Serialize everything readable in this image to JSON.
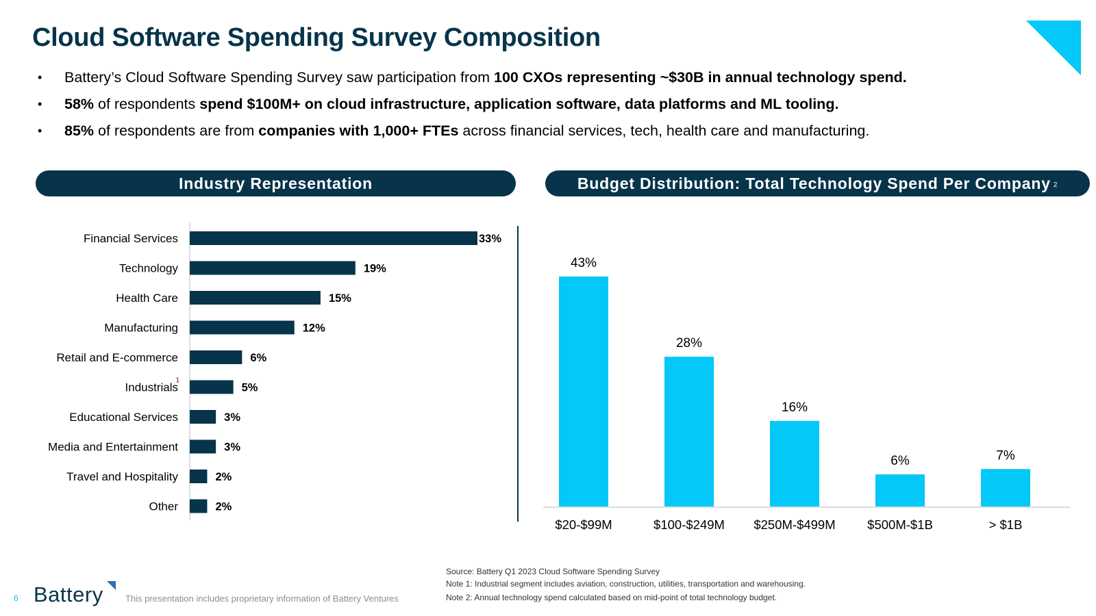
{
  "header": {
    "title": "Cloud Software Spending Survey Composition"
  },
  "bullets": [
    {
      "segments": [
        {
          "text": "Battery’s Cloud Software Spending Survey saw participation from ",
          "bold": false
        },
        {
          "text": "100 CXOs representing ~$30B in annual technology spend.",
          "bold": true
        }
      ]
    },
    {
      "segments": [
        {
          "text": "58%",
          "bold": true
        },
        {
          "text": " of respondents ",
          "bold": false
        },
        {
          "text": "spend $100M+ on cloud infrastructure, application software, data platforms and ML tooling.",
          "bold": true
        }
      ]
    },
    {
      "segments": [
        {
          "text": "85%",
          "bold": true
        },
        {
          "text": " of respondents are from ",
          "bold": false
        },
        {
          "text": "companies with 1,000+ FTEs",
          "bold": true
        },
        {
          "text": " across financial services, tech, health care and manufacturing.",
          "bold": false
        }
      ]
    }
  ],
  "bullet_glyph": "•",
  "panels": {
    "left_title": "Industry Representation",
    "right_title": "Budget Distribution: Total Technology Spend Per Company",
    "right_title_footnote": "2"
  },
  "colors": {
    "navy": "#07344A",
    "cyan": "#03C8F8"
  },
  "chart_data": [
    {
      "type": "bar",
      "orientation": "horizontal",
      "title": "Industry Representation",
      "categories": [
        "Financial Services",
        "Technology",
        "Health Care",
        "Manufacturing",
        "Retail and E-commerce",
        "Industrials",
        "Educational Services",
        "Media and Entertainment",
        "Travel and Hospitality",
        "Other"
      ],
      "category_footnotes": {
        "Industrials": "1"
      },
      "values": [
        33,
        19,
        15,
        12,
        6,
        5,
        3,
        3,
        2,
        2
      ],
      "labels": [
        "33%",
        "19%",
        "15%",
        "12%",
        "6%",
        "5%",
        "3%",
        "3%",
        "2%",
        "2%"
      ],
      "unit": "%",
      "xlim": [
        0,
        33
      ],
      "grid": false,
      "legend": "none",
      "color": "#07344A"
    },
    {
      "type": "bar",
      "orientation": "vertical",
      "title": "Budget Distribution: Total Technology Spend Per Company",
      "categories": [
        "$20-$99M",
        "$100-$249M",
        "$250M-$499M",
        "$500M-$1B",
        "> $1B"
      ],
      "values": [
        43,
        28,
        16,
        6,
        7
      ],
      "labels": [
        "43%",
        "28%",
        "16%",
        "6%",
        "7%"
      ],
      "unit": "%",
      "ylim": [
        0,
        43
      ],
      "grid": false,
      "legend": "none",
      "color": "#03C8F8"
    }
  ],
  "footer": {
    "page_number": "6",
    "logo_text": "Battery",
    "disclaimer": "This presentation includes proprietary information of Battery Ventures",
    "source": "Source: Battery Q1 2023 Cloud Software Spending Survey",
    "note1": "Note 1: Industrial segment includes aviation, construction, utilities, transportation and warehousing.",
    "note2": "Note 2: Annual technology spend calculated based on mid-point of total technology budget."
  }
}
